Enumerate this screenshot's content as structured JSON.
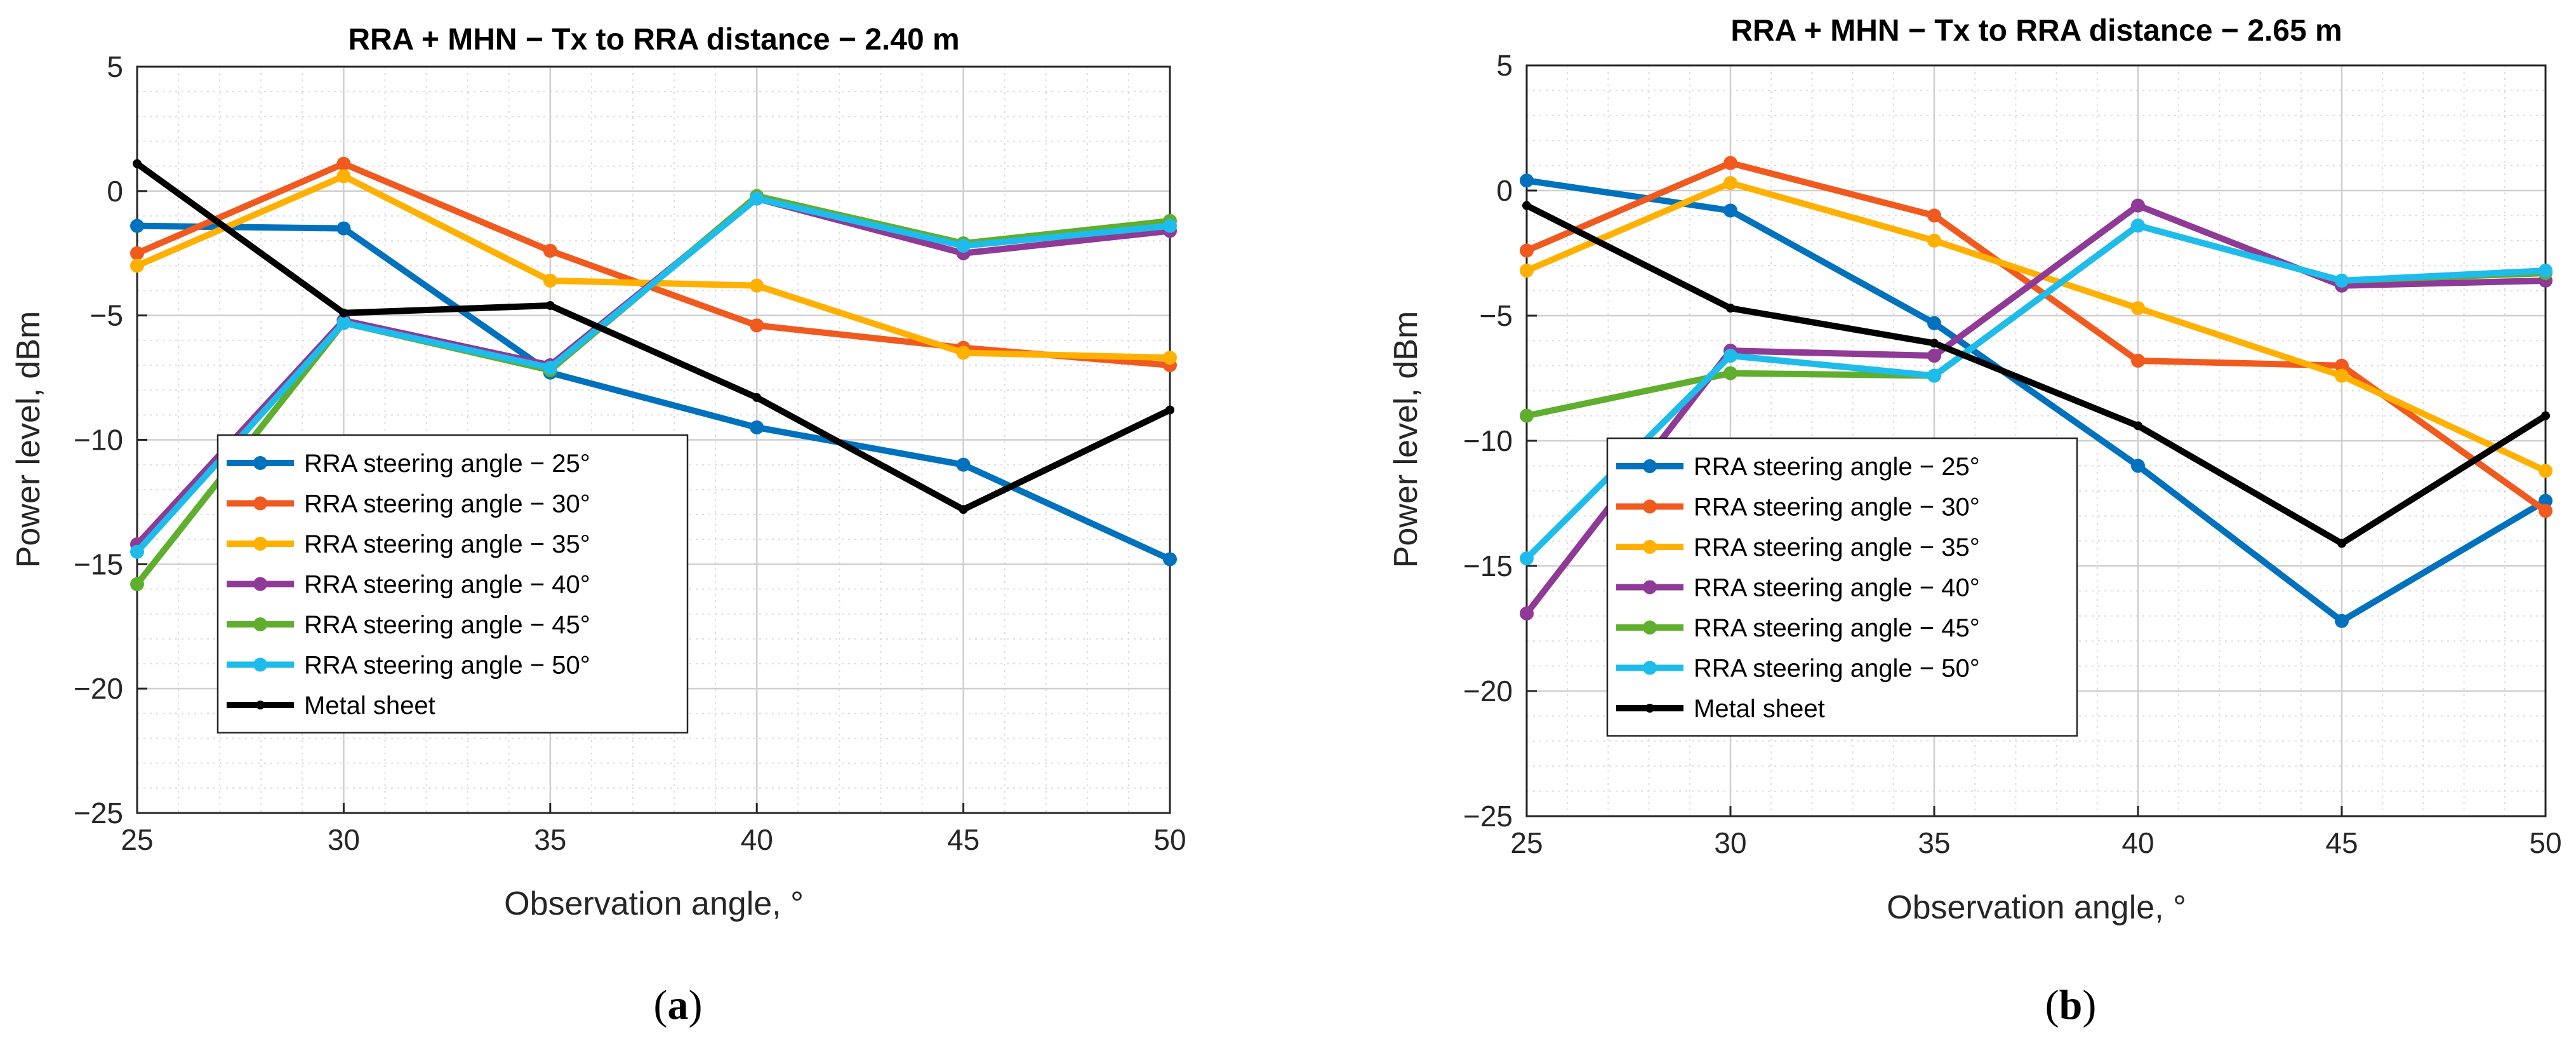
{
  "chart_data": [
    {
      "type": "line",
      "panel": "a",
      "caption": "(a)",
      "caption_letter": "a",
      "title": "RRA + MHN − Tx to RRA distance − 2.40 m",
      "xlabel": "Observation angle, °",
      "ylabel": "Power level, dBm",
      "xlim": [
        25,
        50
      ],
      "ylim": [
        -25,
        5
      ],
      "x": [
        25,
        30,
        35,
        40,
        45,
        50
      ],
      "xticks": [
        25,
        30,
        35,
        40,
        45,
        50
      ],
      "yticks": [
        -25,
        -20,
        -15,
        -10,
        -5,
        0,
        5
      ],
      "ytick_labels": [
        "−25",
        "−20",
        "−15",
        "−10",
        "−5",
        "0",
        "5"
      ],
      "xtick_labels": [
        "25",
        "30",
        "35",
        "40",
        "45",
        "50"
      ],
      "grid": true,
      "legend_position": "bottom-left",
      "series": [
        {
          "name": "RRA steering angle − 25°",
          "color": "#0072BD",
          "values": [
            -1.4,
            -1.5,
            -7.3,
            -9.5,
            -11.0,
            -14.8
          ]
        },
        {
          "name": "RRA steering angle − 30°",
          "color": "#F05A1E",
          "values": [
            -2.5,
            1.1,
            -2.4,
            -5.4,
            -6.3,
            -7.0
          ]
        },
        {
          "name": "RRA steering angle − 35°",
          "color": "#FFB000",
          "values": [
            -3.0,
            0.6,
            -3.6,
            -3.8,
            -6.5,
            -6.7
          ]
        },
        {
          "name": "RRA steering angle − 40°",
          "color": "#8E3A96",
          "values": [
            -14.2,
            -5.2,
            -7.0,
            -0.3,
            -2.5,
            -1.6
          ]
        },
        {
          "name": "RRA steering angle − 45°",
          "color": "#5FAE2E",
          "values": [
            -15.8,
            -5.3,
            -7.2,
            -0.2,
            -2.1,
            -1.2
          ]
        },
        {
          "name": "RRA steering angle − 50°",
          "color": "#1EBCEB",
          "values": [
            -14.5,
            -5.3,
            -7.1,
            -0.3,
            -2.2,
            -1.4
          ]
        },
        {
          "name": "Metal sheet",
          "color": "#000000",
          "values": [
            1.1,
            -4.9,
            -4.6,
            -8.3,
            -12.8,
            -8.8
          ]
        }
      ]
    },
    {
      "type": "line",
      "panel": "b",
      "caption": "(b)",
      "caption_letter": "b",
      "title": "RRA + MHN − Tx to RRA distance − 2.65 m",
      "xlabel": "Observation angle, °",
      "ylabel": "Power level, dBm",
      "xlim": [
        25,
        50
      ],
      "ylim": [
        -25,
        5
      ],
      "x": [
        25,
        30,
        35,
        40,
        45,
        50
      ],
      "xticks": [
        25,
        30,
        35,
        40,
        45,
        50
      ],
      "yticks": [
        -25,
        -20,
        -15,
        -10,
        -5,
        0,
        5
      ],
      "ytick_labels": [
        "−25",
        "−20",
        "−15",
        "−10",
        "−5",
        "0",
        "5"
      ],
      "xtick_labels": [
        "25",
        "30",
        "35",
        "40",
        "45",
        "50"
      ],
      "grid": true,
      "legend_position": "bottom-left",
      "series": [
        {
          "name": "RRA steering angle − 25°",
          "color": "#0072BD",
          "values": [
            0.4,
            -0.8,
            -5.3,
            -11.0,
            -17.2,
            -12.4
          ]
        },
        {
          "name": "RRA steering angle − 30°",
          "color": "#F05A1E",
          "values": [
            -2.4,
            1.1,
            -1.0,
            -6.8,
            -7.0,
            -12.8
          ]
        },
        {
          "name": "RRA steering angle − 35°",
          "color": "#FFB000",
          "values": [
            -3.2,
            0.3,
            -2.0,
            -4.7,
            -7.4,
            -11.2
          ]
        },
        {
          "name": "RRA steering angle − 40°",
          "color": "#8E3A96",
          "values": [
            -16.9,
            -6.4,
            -6.6,
            -0.6,
            -3.8,
            -3.6
          ]
        },
        {
          "name": "RRA steering angle − 45°",
          "color": "#5FAE2E",
          "values": [
            -9.0,
            -7.3,
            -7.4,
            -1.4,
            -3.6,
            -3.3
          ]
        },
        {
          "name": "RRA steering angle − 50°",
          "color": "#1EBCEB",
          "values": [
            -14.7,
            -6.6,
            -7.4,
            -1.4,
            -3.6,
            -3.2
          ]
        },
        {
          "name": "Metal sheet",
          "color": "#000000",
          "values": [
            -0.6,
            -4.7,
            -6.1,
            -9.4,
            -14.1,
            -9.0
          ]
        }
      ]
    }
  ]
}
